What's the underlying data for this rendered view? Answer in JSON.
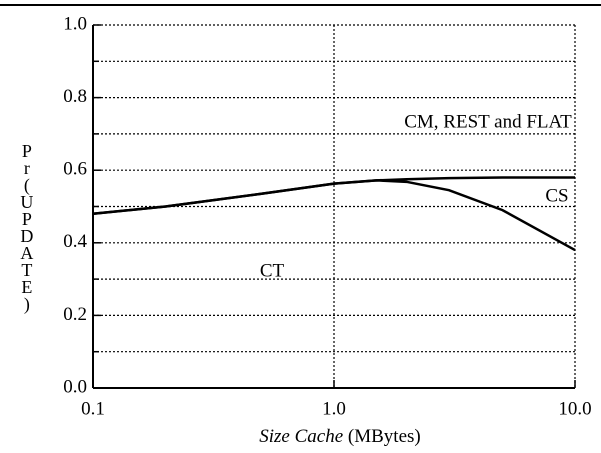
{
  "chart_data": {
    "type": "line",
    "x_label_italic": "Size Cache",
    "x_label_unit": "(MBytes)",
    "y_label": "Pr(UPDATE)",
    "x": [
      0.1,
      0.2,
      0.5,
      1.0,
      1.5,
      2,
      3,
      5,
      10
    ],
    "series": [
      {
        "name": "CM, REST and FLAT",
        "color": "#000000",
        "values": [
          0.48,
          0.5,
          0.535,
          0.563,
          0.572,
          0.575,
          0.578,
          0.58,
          0.58
        ]
      },
      {
        "name": "CS",
        "color": "#000000",
        "values": [
          0.48,
          0.5,
          0.535,
          0.563,
          0.572,
          0.568,
          0.545,
          0.49,
          0.38
        ]
      }
    ],
    "annotations": [
      "CT"
    ],
    "xscale": "log",
    "xlim": [
      0.1,
      10
    ],
    "xticks": [
      0.1,
      {
        "value": 1,
        "label": "1.0"
      },
      {
        "value": 10,
        "label": "10.0"
      }
    ],
    "ylim": [
      0,
      1
    ],
    "yticks": [
      {
        "value": 0,
        "label": "0.0"
      },
      0.2,
      0.4,
      0.6,
      0.8,
      {
        "value": 1,
        "label": "1.0"
      }
    ],
    "minor_yticks": [
      0.1,
      0.3,
      0.5,
      0.7,
      0.9
    ],
    "grid": true
  }
}
